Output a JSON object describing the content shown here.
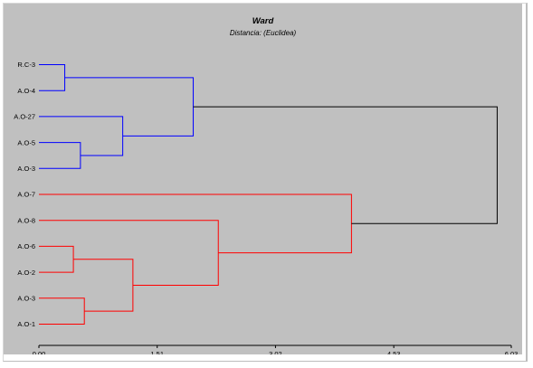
{
  "chart_data": {
    "type": "dendrogram",
    "title": "Ward",
    "subtitle": "Distancia: (Euclidea)",
    "x_ticks": [
      "0,00",
      "1,51",
      "3,02",
      "4,53",
      "6,03"
    ],
    "xlim": [
      0,
      6.03
    ],
    "leaves": [
      "R.C-3",
      "A.O-4",
      "A.O-27",
      "A.O-5",
      "A.O-3",
      "A.O-7",
      "A.O-8",
      "A.O-6",
      "A.O-2",
      "A.O-3",
      "A.O-1"
    ],
    "merges": [
      {
        "left": "R.C-3",
        "right": "A.O-4",
        "height": 0.33,
        "cluster": "blue"
      },
      {
        "left": "A.O-5",
        "right": "A.O-3",
        "height": 0.53,
        "cluster": "blue"
      },
      {
        "left": "A.O-27",
        "right": "A.O-5+A.O-3",
        "height": 1.07,
        "cluster": "blue"
      },
      {
        "left": "R.C-3+A.O-4",
        "right": "A.O-27+A.O-5+A.O-3",
        "height": 1.97,
        "cluster": "blue"
      },
      {
        "left": "A.O-6",
        "right": "A.O-2",
        "height": 0.44,
        "cluster": "red"
      },
      {
        "left": "A.O-3",
        "right": "A.O-1",
        "height": 0.58,
        "cluster": "red"
      },
      {
        "left": "A.O-6+A.O-2",
        "right": "A.O-3+A.O-1",
        "height": 1.2,
        "cluster": "red"
      },
      {
        "left": "A.O-8",
        "right": "A.O-6+A.O-2+A.O-3+A.O-1",
        "height": 2.29,
        "cluster": "red"
      },
      {
        "left": "A.O-7",
        "right": "rest-red",
        "height": 3.99,
        "cluster": "red"
      },
      {
        "left": "blue",
        "right": "red",
        "height": 5.85,
        "cluster": "root"
      }
    ],
    "colors": {
      "blue": "#0000ff",
      "red": "#ff0000",
      "root": "#000000",
      "background": "#c0c0c0"
    }
  }
}
